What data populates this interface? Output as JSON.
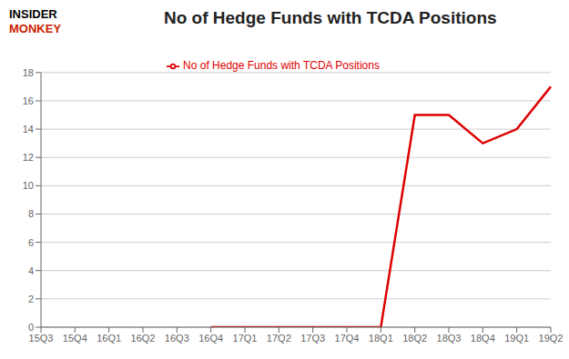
{
  "chart_data": {
    "type": "line",
    "title": "No of Hedge Funds with TCDA Positions",
    "annotations": [
      {
        "text": "INSIDER",
        "color": "#000000"
      },
      {
        "text": "MONKEY",
        "color": "#cc2200"
      }
    ],
    "categories": [
      "15Q3",
      "15Q4",
      "16Q1",
      "16Q2",
      "16Q3",
      "16Q4",
      "17Q1",
      "17Q2",
      "17Q3",
      "17Q4",
      "18Q1",
      "18Q2",
      "18Q3",
      "18Q4",
      "19Q1",
      "19Q2"
    ],
    "series": [
      {
        "name": "No of Hedge Funds with TCDA Positions",
        "color": "#dd0000",
        "values": [
          null,
          null,
          null,
          null,
          null,
          0,
          0,
          0,
          0,
          0,
          0,
          15,
          15,
          13,
          14,
          17
        ]
      }
    ],
    "ylim": [
      0,
      18
    ],
    "yticks": [
      0,
      2,
      4,
      6,
      8,
      10,
      12,
      14,
      16,
      18
    ],
    "grid": true,
    "legend": "top"
  }
}
